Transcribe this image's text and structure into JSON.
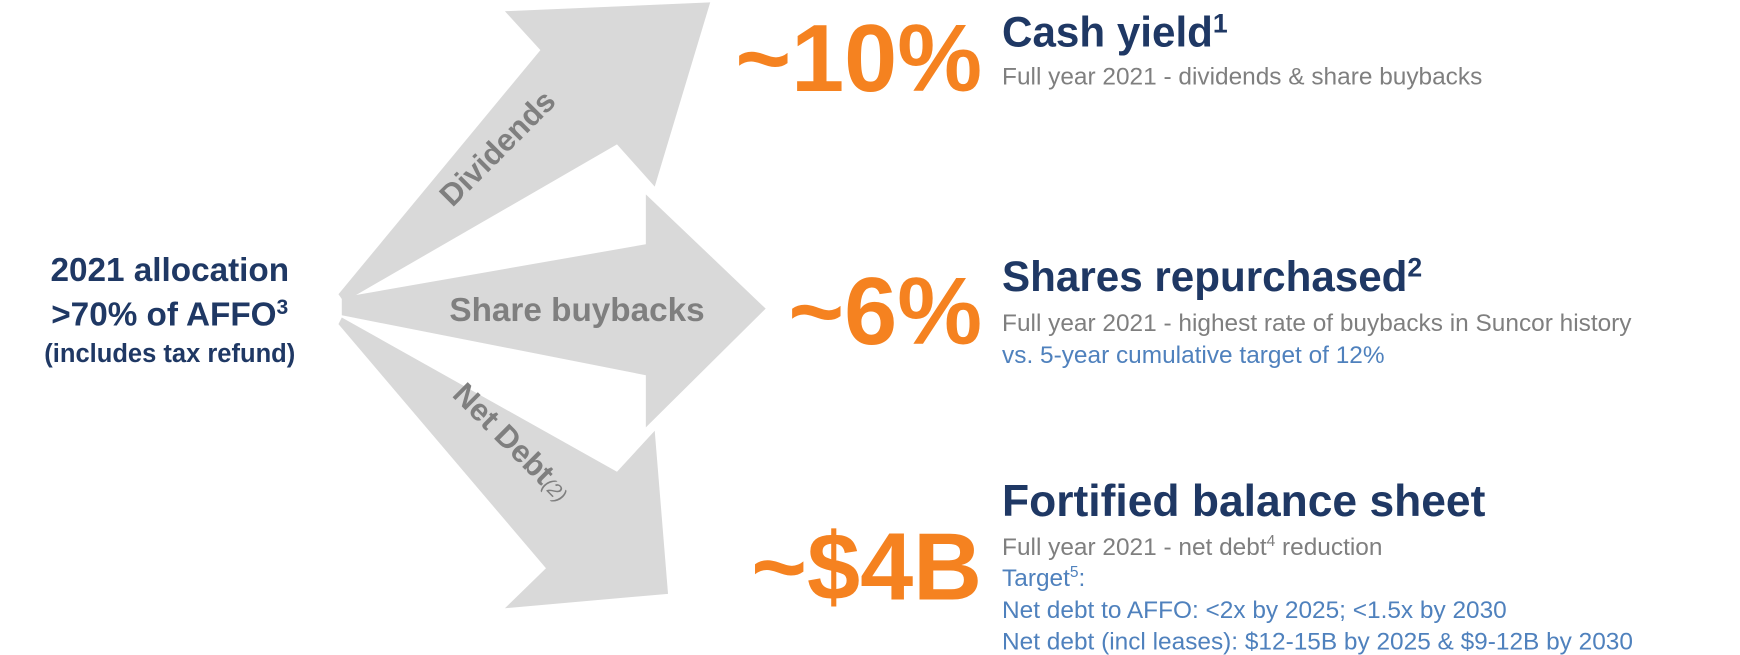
{
  "source": {
    "line1": "2021 allocation",
    "line2": ">70% of AFFO",
    "line2_sup": "3",
    "line3": "(includes tax refund)"
  },
  "arrows": [
    {
      "label": "Dividends"
    },
    {
      "label": "Share buybacks"
    },
    {
      "label": "Net Debt",
      "note": "(2)"
    }
  ],
  "outcomes": [
    {
      "figure": "~10%",
      "heading": "Cash yield",
      "heading_sup": "1",
      "lines": [
        "Full year 2021 - dividends & share buybacks"
      ]
    },
    {
      "figure": "~6%",
      "heading": "Shares repurchased",
      "heading_sup": "2",
      "lines": [
        "Full year 2021 - highest rate of buybacks in Suncor history"
      ],
      "blue_lines": [
        "vs. 5-year cumulative target of 12%"
      ]
    },
    {
      "figure": "~$4B",
      "heading": "Fortified balance sheet",
      "line_parts": [
        "Full year 2021 - net debt",
        "4",
        " reduction"
      ],
      "target_parts": [
        "Target",
        "5",
        ":"
      ],
      "blue_lines": [
        "Net debt to AFFO: <2x by 2025; <1.5x by 2030",
        "Net debt (incl leases): $12-15B by 2025 & $9-12B by 2030"
      ]
    }
  ]
}
